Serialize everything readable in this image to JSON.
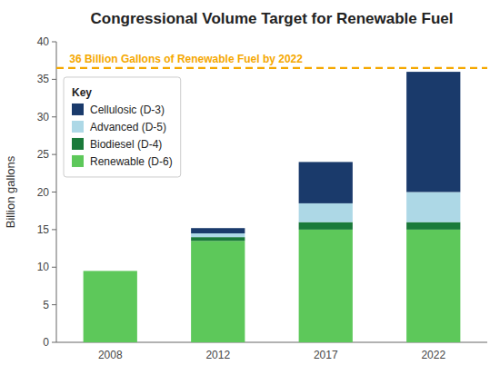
{
  "chart_data": {
    "type": "bar",
    "stacked": true,
    "title": "Congressional Volume Target for Renewable Fuel",
    "ylabel": "Billion gallons",
    "categories": [
      "2008",
      "2012",
      "2017",
      "2022"
    ],
    "series": [
      {
        "name": "Renewable (D-6)",
        "color": "#5dc85a",
        "values": [
          9.5,
          13.5,
          15.0,
          15.0
        ]
      },
      {
        "name": "Biodiesel (D-4)",
        "color": "#1a7a3a",
        "values": [
          0.0,
          0.5,
          1.0,
          1.0
        ]
      },
      {
        "name": "Advanced (D-5)",
        "color": "#add8e6",
        "values": [
          0.0,
          0.5,
          2.5,
          4.0
        ]
      },
      {
        "name": "Cellulosic (D-3)",
        "color": "#1a3a6b",
        "values": [
          0.0,
          0.7,
          5.5,
          16.0
        ]
      }
    ],
    "annotations": [
      {
        "text": "36 Billion Gallons of Renewable Fuel by 2022",
        "y": 36.5,
        "color": "#f5a800",
        "line_style": "dashed"
      }
    ],
    "ylim": [
      0,
      40
    ],
    "yticks": [
      0,
      5,
      10,
      15,
      20,
      25,
      30,
      35,
      40
    ],
    "grid": false,
    "legend": "upper left",
    "legend_title": "Key"
  }
}
